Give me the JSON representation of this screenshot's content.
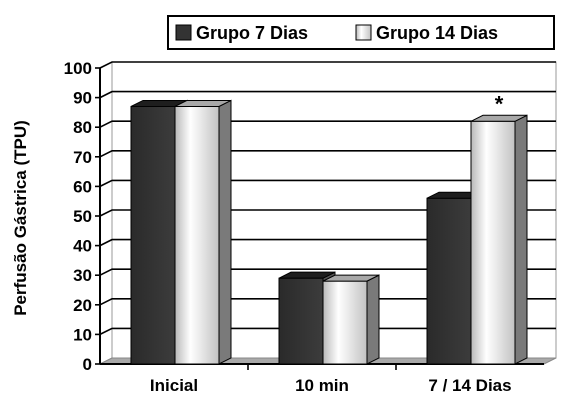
{
  "chart_data": {
    "type": "bar",
    "title": "",
    "xlabel": "",
    "ylabel": "Perfusão Gástrica (TPU)",
    "categories": [
      "Inicial",
      "10 min",
      "7 / 14 Dias"
    ],
    "series": [
      {
        "name": "Grupo 7 Dias",
        "values": [
          87,
          29,
          56
        ],
        "color": "#333333"
      },
      {
        "name": "Grupo 14 Dias",
        "values": [
          87,
          28,
          82
        ],
        "color": "#e6e6e6"
      }
    ],
    "ylim": [
      0,
      100
    ],
    "yticks": [
      0,
      10,
      20,
      30,
      40,
      50,
      60,
      70,
      80,
      90,
      100
    ],
    "grid": true,
    "three_d": true,
    "legend_position": "top-right",
    "annotations": [
      {
        "text": "*",
        "category": "7 / 14 Dias",
        "series": "Grupo 14 Dias"
      }
    ]
  }
}
